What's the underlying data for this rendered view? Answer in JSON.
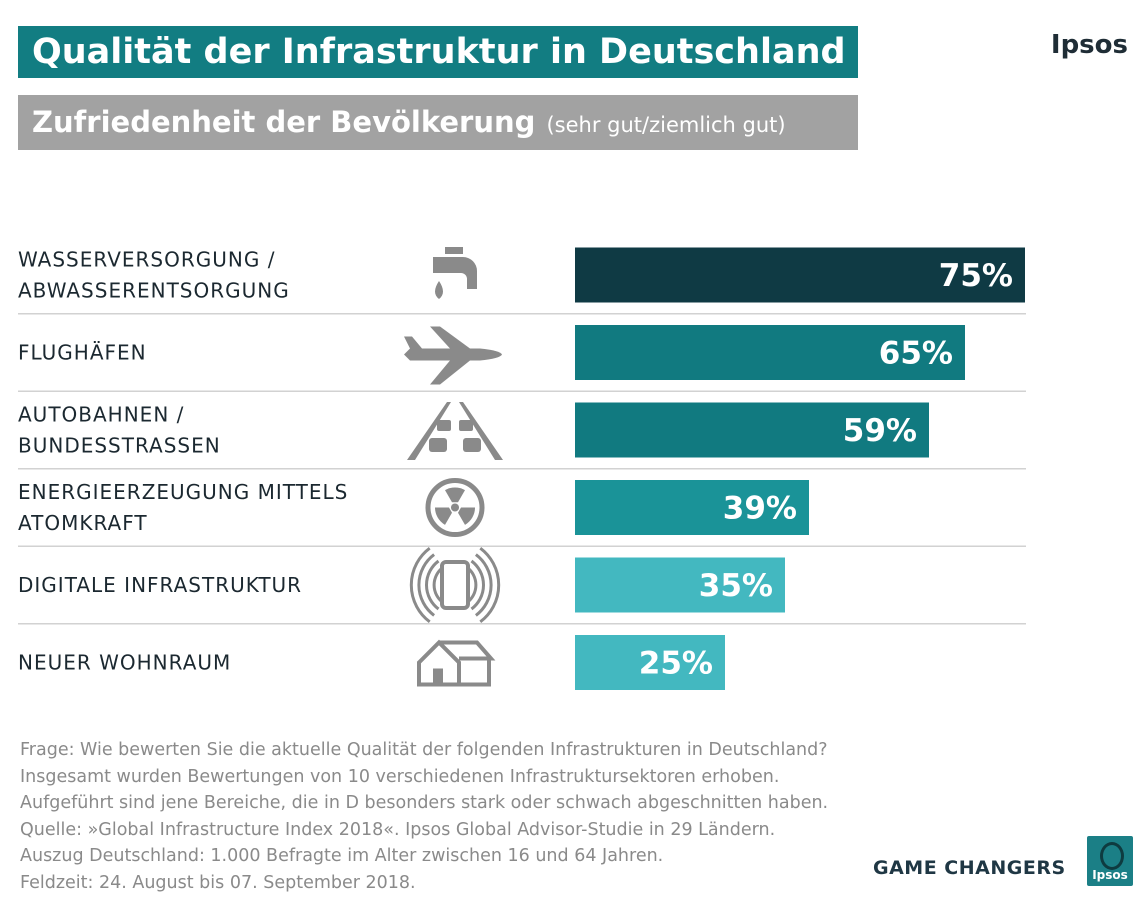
{
  "header": {
    "title": "Qualität der Infrastruktur in Deutschland",
    "subtitle": "Zufriedenheit der Bevölkerung",
    "subtitle_note": "(sehr gut/ziemlich gut)",
    "brand": "Ipsos"
  },
  "chart_data": {
    "type": "bar",
    "orientation": "horizontal",
    "categories": [
      [
        "WASSERVERSORGUNG /",
        "ABWASSERENTSORGUNG"
      ],
      [
        "FLUGHÄFEN"
      ],
      [
        "AUTOBAHNEN /",
        "BUNDESSTRASSEN"
      ],
      [
        "ENERGIEERZEUGUNG MITTELS",
        "ATOMKRAFT"
      ],
      [
        "DIGITALE INFRASTRUKTUR"
      ],
      [
        "NEUER WOHNRAUM"
      ]
    ],
    "values": [
      75,
      65,
      59,
      39,
      35,
      25
    ],
    "value_labels": [
      "75%",
      "65%",
      "59%",
      "39%",
      "35%",
      "25%"
    ],
    "icons": [
      "water-tap-icon",
      "airplane-icon",
      "highway-traffic-icon",
      "radiation-icon",
      "smartphone-signal-icon",
      "house-icon"
    ],
    "colors": [
      "#0f3a44",
      "#117a80",
      "#117a80",
      "#1a9398",
      "#43b8c0",
      "#43b8c0"
    ],
    "xlim": [
      0,
      75
    ],
    "grid": false,
    "legend": "none"
  },
  "footnote": {
    "lines": [
      "Frage: Wie bewerten Sie die aktuelle Qualität der folgenden Infrastrukturen in Deutschland?",
      "Insgesamt wurden Bewertungen von 10 verschiedenen Infrastruktursektoren erhoben.",
      "Aufgeführt sind jene Bereiche, die in D besonders stark oder schwach abgeschnitten haben.",
      "Quelle: »Global Infrastructure Index 2018«. Ipsos Global Advisor-Studie in 29 Ländern.",
      "Auszug Deutschland: 1.000 Befragte im Alter zwischen 16 und 64 Jahren.",
      "Feldzeit: 24. August bis 07. September 2018."
    ]
  },
  "footer": {
    "tagline": "GAME CHANGERS",
    "logo_text": "Ipsos"
  }
}
